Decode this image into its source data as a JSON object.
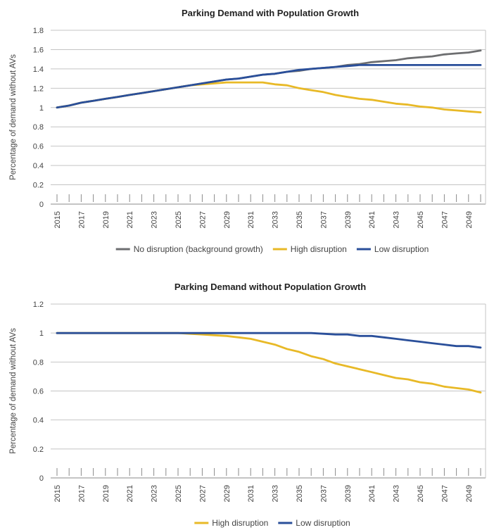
{
  "chart_data": [
    {
      "type": "line",
      "title": "Parking Demand with Population Growth",
      "xlabel": "",
      "ylabel": "Percentage of demand without AVs",
      "ylim": [
        0,
        1.8
      ],
      "yticks": [
        "0",
        "0.2",
        "0.4",
        "0.6",
        "0.8",
        "1",
        "1.2",
        "1.4",
        "1.6",
        "1.8"
      ],
      "grid": true,
      "legend_position": "bottom",
      "x": [
        2015,
        2016,
        2017,
        2018,
        2019,
        2020,
        2021,
        2022,
        2023,
        2024,
        2025,
        2026,
        2027,
        2028,
        2029,
        2030,
        2031,
        2032,
        2033,
        2034,
        2035,
        2036,
        2037,
        2038,
        2039,
        2040,
        2041,
        2042,
        2043,
        2044,
        2045,
        2046,
        2047,
        2048,
        2049,
        2050
      ],
      "xtick_labels": [
        "2015",
        "2017",
        "2019",
        "2021",
        "2023",
        "2025",
        "2027",
        "2029",
        "2031",
        "2033",
        "2035",
        "2037",
        "2039",
        "2041",
        "2043",
        "2045",
        "2047",
        "2049"
      ],
      "series": [
        {
          "name": "No disruption (background growth)",
          "color": "#6d6e70",
          "values": [
            1.0,
            1.02,
            1.05,
            1.07,
            1.09,
            1.11,
            1.13,
            1.15,
            1.17,
            1.19,
            1.21,
            1.23,
            1.25,
            1.27,
            1.29,
            1.3,
            1.32,
            1.34,
            1.35,
            1.37,
            1.38,
            1.4,
            1.41,
            1.42,
            1.44,
            1.45,
            1.47,
            1.48,
            1.49,
            1.51,
            1.52,
            1.53,
            1.55,
            1.56,
            1.57,
            1.59
          ]
        },
        {
          "name": "High disruption",
          "color": "#e8b927",
          "values": [
            1.0,
            1.02,
            1.05,
            1.07,
            1.09,
            1.11,
            1.13,
            1.15,
            1.17,
            1.19,
            1.21,
            1.23,
            1.24,
            1.25,
            1.26,
            1.26,
            1.26,
            1.26,
            1.24,
            1.23,
            1.2,
            1.18,
            1.16,
            1.13,
            1.11,
            1.09,
            1.08,
            1.06,
            1.04,
            1.03,
            1.01,
            1.0,
            0.98,
            0.97,
            0.96,
            0.95
          ]
        },
        {
          "name": "Low disruption",
          "color": "#2a4f9a",
          "values": [
            1.0,
            1.02,
            1.05,
            1.07,
            1.09,
            1.11,
            1.13,
            1.15,
            1.17,
            1.19,
            1.21,
            1.23,
            1.25,
            1.27,
            1.29,
            1.3,
            1.32,
            1.34,
            1.35,
            1.37,
            1.39,
            1.4,
            1.41,
            1.42,
            1.43,
            1.44,
            1.44,
            1.44,
            1.44,
            1.44,
            1.44,
            1.44,
            1.44,
            1.44,
            1.44,
            1.44
          ]
        }
      ]
    },
    {
      "type": "line",
      "title": "Parking Demand without Population Growth",
      "xlabel": "",
      "ylabel": "Percentage of demand without AVs",
      "ylim": [
        0,
        1.2
      ],
      "yticks": [
        "0",
        "0.2",
        "0.4",
        "0.6",
        "0.8",
        "1",
        "1.2"
      ],
      "grid": true,
      "legend_position": "bottom",
      "x": [
        2015,
        2016,
        2017,
        2018,
        2019,
        2020,
        2021,
        2022,
        2023,
        2024,
        2025,
        2026,
        2027,
        2028,
        2029,
        2030,
        2031,
        2032,
        2033,
        2034,
        2035,
        2036,
        2037,
        2038,
        2039,
        2040,
        2041,
        2042,
        2043,
        2044,
        2045,
        2046,
        2047,
        2048,
        2049,
        2050
      ],
      "xtick_labels": [
        "2015",
        "2017",
        "2019",
        "2021",
        "2023",
        "2025",
        "2027",
        "2029",
        "2031",
        "2033",
        "2035",
        "2037",
        "2039",
        "2041",
        "2043",
        "2045",
        "2047",
        "2049"
      ],
      "series": [
        {
          "name": "High disruption",
          "color": "#e8b927",
          "values": [
            1.0,
            1.0,
            1.0,
            1.0,
            1.0,
            1.0,
            1.0,
            1.0,
            1.0,
            1.0,
            1.0,
            0.995,
            0.99,
            0.985,
            0.98,
            0.97,
            0.96,
            0.94,
            0.92,
            0.89,
            0.87,
            0.84,
            0.82,
            0.79,
            0.77,
            0.75,
            0.73,
            0.71,
            0.69,
            0.68,
            0.66,
            0.65,
            0.63,
            0.62,
            0.61,
            0.59
          ]
        },
        {
          "name": "Low disruption",
          "color": "#2a4f9a",
          "values": [
            1.0,
            1.0,
            1.0,
            1.0,
            1.0,
            1.0,
            1.0,
            1.0,
            1.0,
            1.0,
            1.0,
            1.0,
            1.0,
            1.0,
            1.0,
            1.0,
            1.0,
            1.0,
            1.0,
            1.0,
            1.0,
            1.0,
            0.995,
            0.99,
            0.99,
            0.98,
            0.98,
            0.97,
            0.96,
            0.95,
            0.94,
            0.93,
            0.92,
            0.91,
            0.91,
            0.9
          ]
        }
      ]
    }
  ]
}
